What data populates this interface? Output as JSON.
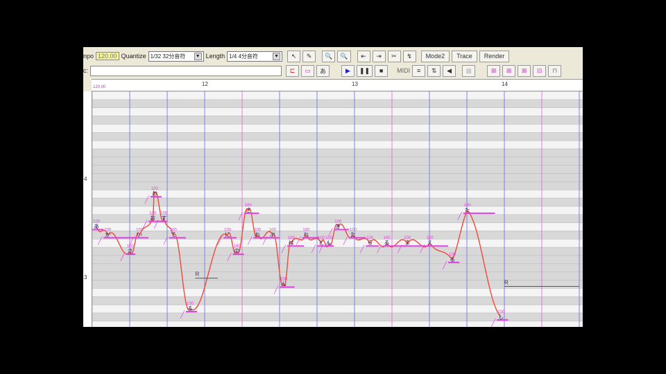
{
  "toolbar": {
    "tempo_label": "npo",
    "tempo_value": "120.00",
    "quantize_label": "Quantize",
    "quantize_value": "1/32 32分音符",
    "length_label": "Length",
    "length_value": "1/4 4分音符",
    "mode_label": "Mode2",
    "trace_label": "Trace",
    "render_label": "Render",
    "midi_label": "MIDI",
    "lyric_label": "c:",
    "lyric_value": ""
  },
  "ruler": {
    "start_label": "120.00",
    "measures": [
      "12",
      "13",
      "14"
    ]
  },
  "keys": {
    "octave_labels": [
      "4",
      "3"
    ]
  },
  "colors": {
    "note": "#e040e0",
    "pitch_curve": "#ee4a3a",
    "beat_line": "#6a6ae0",
    "measure_line": "#e060e0",
    "row_dark": "#d8d8d8",
    "row_light": "#f4f4f4"
  },
  "notes": [
    {
      "lyric": "あ",
      "start": 0.0,
      "length": 0.3,
      "row": 16
    },
    {
      "lyric": "か",
      "start": 0.3,
      "length": 0.9,
      "row": 17
    },
    {
      "lyric": "さ",
      "start": 0.9,
      "length": 0.25,
      "row": 19
    },
    {
      "lyric": "い",
      "start": 1.15,
      "length": 0.35,
      "row": 17
    },
    {
      "lyric": "お",
      "start": 1.5,
      "length": 0.3,
      "row": 15
    },
    {
      "lyric": "お",
      "start": 1.55,
      "length": 0.3,
      "row": 12
    },
    {
      "lyric": "す",
      "start": 1.8,
      "length": 0.2,
      "row": 15
    },
    {
      "lyric": "て",
      "start": 2.05,
      "length": 0.45,
      "row": 17
    },
    {
      "lyric": "る",
      "start": 2.5,
      "length": 0.3,
      "row": 26
    },
    {
      "lyric": "に",
      "start": 3.5,
      "length": 0.35,
      "row": 17
    },
    {
      "lyric": "の",
      "start": 3.75,
      "length": 0.3,
      "row": 19
    },
    {
      "lyric": "さ",
      "start": 4.05,
      "length": 0.4,
      "row": 14
    },
    {
      "lyric": "れ",
      "start": 4.3,
      "length": 0.4,
      "row": 17
    },
    {
      "lyric": "ぶ",
      "start": 4.7,
      "length": 0.3,
      "row": 17
    },
    {
      "lyric": "ん",
      "start": 5.0,
      "length": 0.4,
      "row": 23
    },
    {
      "lyric": "は",
      "start": 5.2,
      "length": 0.45,
      "row": 18
    },
    {
      "lyric": "れ",
      "start": 5.6,
      "length": 0.45,
      "row": 17
    },
    {
      "lyric": "と",
      "start": 6.0,
      "length": 0.3,
      "row": 18
    },
    {
      "lyric": "ん",
      "start": 6.2,
      "length": 0.25,
      "row": 18
    },
    {
      "lyric": "き",
      "start": 6.45,
      "length": 0.4,
      "row": 16
    },
    {
      "lyric": "た",
      "start": 6.85,
      "length": 0.45,
      "row": 17
    },
    {
      "lyric": "ら",
      "start": 7.3,
      "length": 0.35,
      "row": 18
    },
    {
      "lyric": "る",
      "start": 7.75,
      "length": 0.6,
      "row": 18
    },
    {
      "lyric": "ま",
      "start": 8.3,
      "length": 0.6,
      "row": 18
    },
    {
      "lyric": "え",
      "start": 8.9,
      "length": 0.6,
      "row": 18
    },
    {
      "lyric": "る",
      "start": 9.5,
      "length": 0.3,
      "row": 20
    },
    {
      "lyric": "た",
      "start": 9.9,
      "length": 0.85,
      "row": 14
    },
    {
      "lyric": "し",
      "start": 10.8,
      "length": 0.3,
      "row": 27
    }
  ],
  "rests": [
    {
      "lyric": "R",
      "start": 2.75,
      "length": 0.6,
      "row": 22
    },
    {
      "lyric": "R",
      "start": 11.0,
      "length": 2.0,
      "row": 23
    }
  ]
}
